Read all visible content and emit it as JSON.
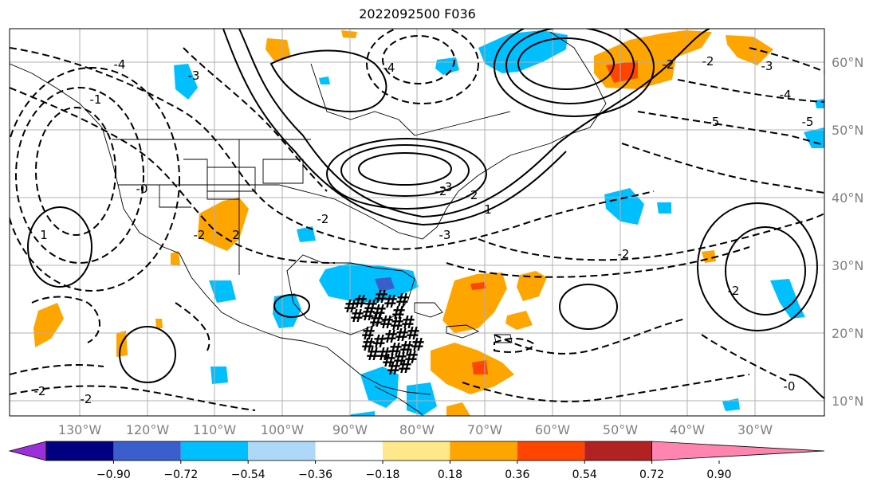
{
  "title": "2022092500 F036",
  "map": {
    "lon_labels": [
      "130°W",
      "120°W",
      "110°W",
      "100°W",
      "90°W",
      "80°W",
      "70°W",
      "60°W",
      "50°W",
      "40°W",
      "30°W"
    ],
    "lat_labels": [
      "60°N",
      "50°N",
      "40°N",
      "30°N",
      "20°N",
      "10°N"
    ],
    "contour_labels": [
      "-2",
      "-2",
      "-4",
      "-3",
      "-1",
      "-0",
      "-0",
      "-2",
      "-2",
      "-2",
      "-2",
      "-3",
      "-4",
      "-5",
      "-5",
      "-3",
      "-2",
      "-2",
      "-0",
      "1",
      "1",
      "2",
      "-3",
      "-4",
      "-2",
      "-2"
    ],
    "hatch_symbol": "#"
  },
  "colorbar": {
    "ticks": [
      "−0.90",
      "−0.72",
      "−0.54",
      "−0.36",
      "−0.18",
      "0.18",
      "0.36",
      "0.54",
      "0.72",
      "0.90"
    ],
    "colors": [
      "#9b30d9",
      "#000080",
      "#3a5fcd",
      "#00bfff",
      "#add8f7",
      "#ffffff",
      "#ffe88a",
      "#ffa500",
      "#ff4500",
      "#b22222",
      "#ff85b0"
    ]
  }
}
